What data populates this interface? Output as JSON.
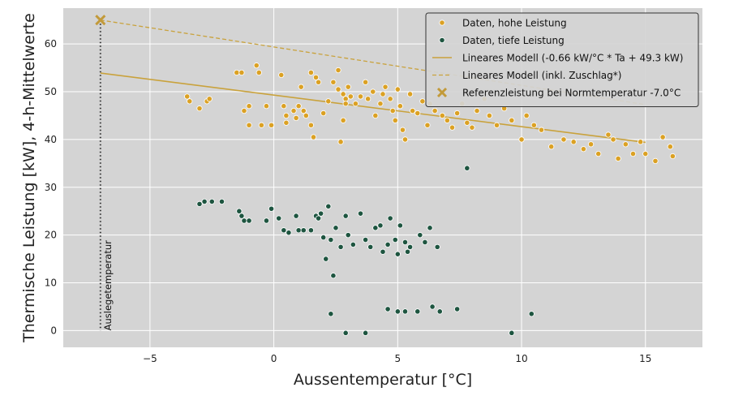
{
  "chart_data": {
    "type": "scatter",
    "xlabel": "Aussentemperatur [°C]",
    "ylabel": "Thermische Leistung [kW], 4-h-Mittelwerte",
    "xlim": [
      -8.5,
      17.3
    ],
    "ylim": [
      -3.5,
      67.5
    ],
    "xticks": [
      -5,
      0,
      5,
      10,
      15
    ],
    "yticks": [
      0,
      10,
      20,
      30,
      40,
      50,
      60
    ],
    "grid": true,
    "legend_position": "top-right",
    "colors": {
      "plot_bg": "#d4d4d4",
      "grid": "#ffffff",
      "high": "#dba124",
      "low": "#1e5540",
      "model": "#c9a23c",
      "reference": "#c29a3a",
      "vline": "#333333"
    },
    "legend": [
      {
        "label": "Daten, hohe Leistung",
        "marker": "dot",
        "color": "high"
      },
      {
        "label": "Daten, tiefe Leistung",
        "marker": "dot",
        "color": "low"
      },
      {
        "label": "Lineares Modell (-0.66 kW/°C * Ta + 49.3 kW)",
        "marker": "solid-line",
        "color": "model"
      },
      {
        "label": "Lineares Modell (inkl. Zuschlag*)",
        "marker": "dashed-line",
        "color": "model"
      },
      {
        "label": "Referenzleistung bei Normtemperatur -7.0°C",
        "marker": "x",
        "color": "reference"
      }
    ],
    "annotation": {
      "text": "Auslegetemperatur",
      "x": -7.0
    },
    "series": [
      {
        "name": "Daten, hohe Leistung",
        "kind": "scatter",
        "points": [
          [
            -3.5,
            49.0
          ],
          [
            -3.4,
            48.0
          ],
          [
            -3.0,
            46.5
          ],
          [
            -2.7,
            48.0
          ],
          [
            -2.6,
            48.5
          ],
          [
            -1.5,
            54.0
          ],
          [
            -1.3,
            54.0
          ],
          [
            -1.2,
            46.0
          ],
          [
            -1.0,
            47.0
          ],
          [
            -1.0,
            43.0
          ],
          [
            -0.7,
            55.5
          ],
          [
            -0.6,
            54.0
          ],
          [
            -0.5,
            43.0
          ],
          [
            -0.3,
            47.0
          ],
          [
            -0.1,
            43.0
          ],
          [
            0.3,
            53.5
          ],
          [
            0.4,
            47.0
          ],
          [
            0.5,
            45.0
          ],
          [
            0.5,
            43.5
          ],
          [
            0.8,
            46.0
          ],
          [
            0.9,
            44.5
          ],
          [
            1.0,
            47.0
          ],
          [
            1.1,
            51.0
          ],
          [
            1.2,
            46.0
          ],
          [
            1.3,
            45.0
          ],
          [
            1.5,
            54.0
          ],
          [
            1.5,
            43.0
          ],
          [
            1.6,
            40.5
          ],
          [
            1.7,
            53.0
          ],
          [
            1.8,
            52.0
          ],
          [
            2.0,
            45.5
          ],
          [
            2.2,
            48.0
          ],
          [
            2.4,
            52.0
          ],
          [
            2.6,
            50.5
          ],
          [
            2.8,
            49.5
          ],
          [
            2.9,
            48.5
          ],
          [
            2.6,
            54.5
          ],
          [
            2.8,
            44.0
          ],
          [
            2.9,
            47.5
          ],
          [
            2.7,
            39.5
          ],
          [
            3.0,
            51.0
          ],
          [
            3.1,
            49.0
          ],
          [
            3.3,
            47.5
          ],
          [
            3.5,
            49.0
          ],
          [
            3.7,
            52.0
          ],
          [
            3.8,
            48.5
          ],
          [
            4.0,
            50.0
          ],
          [
            4.1,
            45.0
          ],
          [
            4.3,
            47.5
          ],
          [
            4.4,
            49.5
          ],
          [
            4.5,
            51.0
          ],
          [
            4.7,
            48.5
          ],
          [
            4.8,
            46.0
          ],
          [
            4.9,
            44.0
          ],
          [
            5.0,
            50.5
          ],
          [
            5.1,
            47.0
          ],
          [
            5.2,
            42.0
          ],
          [
            5.3,
            40.0
          ],
          [
            5.5,
            49.5
          ],
          [
            5.6,
            46.0
          ],
          [
            5.8,
            45.5
          ],
          [
            6.0,
            48.0
          ],
          [
            6.2,
            43.0
          ],
          [
            6.3,
            47.5
          ],
          [
            6.5,
            46.0
          ],
          [
            6.8,
            45.0
          ],
          [
            7.0,
            44.0
          ],
          [
            7.2,
            42.5
          ],
          [
            7.4,
            45.5
          ],
          [
            7.6,
            47.5
          ],
          [
            7.8,
            43.5
          ],
          [
            8.0,
            42.5
          ],
          [
            8.2,
            46.0
          ],
          [
            8.5,
            48.5
          ],
          [
            8.7,
            45.0
          ],
          [
            9.0,
            43.0
          ],
          [
            9.3,
            46.5
          ],
          [
            9.6,
            44.0
          ],
          [
            10.0,
            40.0
          ],
          [
            10.2,
            45.0
          ],
          [
            10.5,
            43.0
          ],
          [
            10.8,
            42.0
          ],
          [
            11.2,
            38.5
          ],
          [
            11.7,
            40.0
          ],
          [
            12.1,
            39.5
          ],
          [
            12.5,
            38.0
          ],
          [
            12.8,
            39.0
          ],
          [
            13.1,
            37.0
          ],
          [
            13.5,
            41.0
          ],
          [
            13.7,
            40.0
          ],
          [
            13.9,
            36.0
          ],
          [
            14.2,
            39.0
          ],
          [
            14.5,
            37.0
          ],
          [
            14.8,
            39.5
          ],
          [
            15.0,
            37.0
          ],
          [
            15.4,
            35.5
          ],
          [
            15.7,
            40.5
          ],
          [
            16.0,
            38.5
          ],
          [
            16.1,
            36.5
          ]
        ]
      },
      {
        "name": "Daten, tiefe Leistung",
        "kind": "scatter",
        "points": [
          [
            -3.0,
            26.5
          ],
          [
            -2.8,
            27.0
          ],
          [
            -2.5,
            27.0
          ],
          [
            -2.1,
            27.0
          ],
          [
            -1.4,
            25.0
          ],
          [
            -1.3,
            24.0
          ],
          [
            -1.2,
            23.0
          ],
          [
            -1.0,
            23.0
          ],
          [
            -0.3,
            23.0
          ],
          [
            -0.1,
            25.5
          ],
          [
            0.2,
            23.5
          ],
          [
            0.4,
            21.0
          ],
          [
            0.6,
            20.5
          ],
          [
            0.9,
            24.0
          ],
          [
            1.0,
            21.0
          ],
          [
            1.2,
            21.0
          ],
          [
            1.5,
            21.0
          ],
          [
            1.7,
            24.0
          ],
          [
            1.8,
            23.5
          ],
          [
            1.9,
            24.5
          ],
          [
            2.0,
            19.5
          ],
          [
            2.1,
            15.0
          ],
          [
            2.2,
            26.0
          ],
          [
            2.4,
            11.5
          ],
          [
            2.3,
            19.0
          ],
          [
            2.5,
            21.5
          ],
          [
            2.7,
            17.5
          ],
          [
            2.9,
            24.0
          ],
          [
            3.0,
            20.0
          ],
          [
            3.2,
            18.0
          ],
          [
            3.5,
            24.5
          ],
          [
            3.7,
            19.0
          ],
          [
            3.9,
            17.5
          ],
          [
            4.1,
            21.5
          ],
          [
            4.3,
            22.0
          ],
          [
            4.4,
            16.5
          ],
          [
            4.6,
            18.0
          ],
          [
            4.7,
            23.5
          ],
          [
            4.9,
            19.0
          ],
          [
            5.0,
            16.0
          ],
          [
            5.1,
            22.0
          ],
          [
            5.3,
            18.5
          ],
          [
            5.4,
            16.5
          ],
          [
            5.5,
            17.5
          ],
          [
            5.9,
            20.0
          ],
          [
            6.1,
            18.5
          ],
          [
            6.3,
            21.5
          ],
          [
            6.6,
            17.5
          ],
          [
            7.8,
            34.0
          ],
          [
            2.3,
            3.5
          ],
          [
            2.9,
            -0.5
          ],
          [
            3.7,
            -0.5
          ],
          [
            4.6,
            4.5
          ],
          [
            5.0,
            4.0
          ],
          [
            5.3,
            4.0
          ],
          [
            5.8,
            4.0
          ],
          [
            6.4,
            5.0
          ],
          [
            6.7,
            4.0
          ],
          [
            7.4,
            4.5
          ],
          [
            9.6,
            -0.5
          ],
          [
            10.4,
            3.5
          ]
        ]
      },
      {
        "name": "Lineares Modell (-0.66 kW/°C * Ta + 49.3 kW)",
        "kind": "line",
        "style": "solid",
        "x": [
          -7.0,
          15.0
        ],
        "y": [
          53.9,
          39.4
        ]
      },
      {
        "name": "Lineares Modell (inkl. Zuschlag*)",
        "kind": "line",
        "style": "dashed",
        "x": [
          -7.0,
          15.0
        ],
        "y": [
          65.0,
          47.3
        ]
      },
      {
        "name": "Referenzleistung bei Normtemperatur -7.0°C",
        "kind": "point",
        "marker": "x",
        "x": -7.0,
        "y": 65.0
      }
    ]
  }
}
